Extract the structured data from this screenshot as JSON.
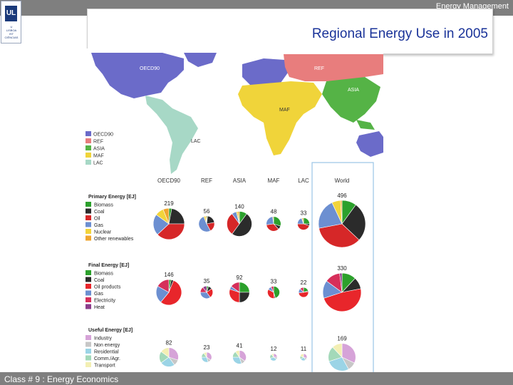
{
  "header": {
    "label": "Energy Management"
  },
  "title": "Regional Energy Use in 2005",
  "footer": {
    "label": "Class # 9 : Energy Economics"
  },
  "logo": {
    "glyph": "UL",
    "lines": [
      "U",
      "LISBOA",
      "IST",
      "CIÊNCIAS"
    ]
  },
  "map": {
    "region_labels": [
      "OECD90",
      "REF",
      "ASIA",
      "MAF",
      "LAC"
    ],
    "legend": [
      {
        "label": "OECD90",
        "color": "#6b6bc9"
      },
      {
        "label": "REF",
        "color": "#e87d7d"
      },
      {
        "label": "ASIA",
        "color": "#55b346"
      },
      {
        "label": "MAF",
        "color": "#f0d43a"
      },
      {
        "label": "LAC",
        "color": "#a7d8c6"
      }
    ]
  },
  "columns": [
    "OECD90",
    "REF",
    "ASIA",
    "MAF",
    "LAC",
    "World"
  ],
  "chart_data": [
    {
      "type": "pie",
      "title": "Primary Energy [EJ]",
      "categories": [
        "Biomass",
        "Coal",
        "Oil",
        "Gas",
        "Nuclear",
        "Other renewables"
      ],
      "colors": [
        "#2ca02c",
        "#2b2b2b",
        "#d62728",
        "#6c8fd1",
        "#f2d43b",
        "#f0a52e"
      ],
      "totals": [
        219,
        56,
        140,
        48,
        33,
        496
      ],
      "series": [
        {
          "name": "OECD90",
          "values": [
            3,
            22,
            38,
            22,
            9,
            6
          ]
        },
        {
          "name": "REF",
          "values": [
            2,
            20,
            20,
            52,
            4,
            2
          ]
        },
        {
          "name": "ASIA",
          "values": [
            10,
            50,
            30,
            6,
            2,
            2
          ]
        },
        {
          "name": "MAF",
          "values": [
            30,
            8,
            35,
            25,
            0,
            2
          ]
        },
        {
          "name": "LAC",
          "values": [
            25,
            5,
            45,
            20,
            1,
            4
          ]
        },
        {
          "name": "World",
          "values": [
            10,
            27,
            35,
            21,
            6,
            1
          ]
        }
      ]
    },
    {
      "type": "pie",
      "title": "Final Energy [EJ]",
      "categories": [
        "Biomass",
        "Coal",
        "Oil products",
        "Gas",
        "Electricity",
        "Heat"
      ],
      "colors": [
        "#2ca02c",
        "#2b2b2b",
        "#e8262b",
        "#6c8fd1",
        "#d62f5a",
        "#8b3d8b"
      ],
      "totals": [
        146,
        35,
        92,
        33,
        22,
        330
      ],
      "series": [
        {
          "name": "OECD90",
          "values": [
            3,
            3,
            55,
            22,
            17,
            0
          ]
        },
        {
          "name": "REF",
          "values": [
            5,
            10,
            25,
            35,
            15,
            10
          ]
        },
        {
          "name": "ASIA",
          "values": [
            25,
            25,
            30,
            5,
            15,
            0
          ]
        },
        {
          "name": "MAF",
          "values": [
            45,
            3,
            35,
            10,
            7,
            0
          ]
        },
        {
          "name": "LAC",
          "values": [
            20,
            3,
            50,
            15,
            12,
            0
          ]
        },
        {
          "name": "World",
          "values": [
            12,
            10,
            48,
            15,
            13,
            2
          ]
        }
      ]
    },
    {
      "type": "pie",
      "title": "Useful Energy [EJ]",
      "categories": [
        "Industry",
        "Non energy",
        "Residential",
        "Comm./Agr.",
        "Transport"
      ],
      "colors": [
        "#d6a3d8",
        "#c7c7c7",
        "#9bd4e6",
        "#a3d9b9",
        "#f3efb3"
      ],
      "totals": [
        82,
        23,
        41,
        12,
        11,
        169
      ],
      "series": [
        {
          "name": "OECD90",
          "values": [
            30,
            10,
            25,
            20,
            15
          ]
        },
        {
          "name": "REF",
          "values": [
            35,
            10,
            30,
            15,
            10
          ]
        },
        {
          "name": "ASIA",
          "values": [
            35,
            10,
            30,
            15,
            10
          ]
        },
        {
          "name": "MAF",
          "values": [
            25,
            10,
            35,
            20,
            10
          ]
        },
        {
          "name": "LAC",
          "values": [
            30,
            10,
            25,
            15,
            20
          ]
        },
        {
          "name": "World",
          "values": [
            32,
            10,
            28,
            18,
            12
          ]
        }
      ]
    }
  ]
}
